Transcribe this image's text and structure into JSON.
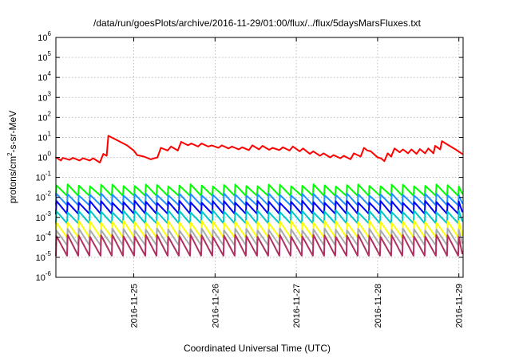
{
  "chart_data": {
    "type": "line",
    "title": "/data/run/goesPlots/archive/2016-11-29/01:00/flux/../flux/5daysMarsFluxes.txt",
    "xlabel": "Coordinated Universal Time (UTC)",
    "ylabel": {
      "pre": "protons/cm",
      "sup": "2",
      "post": "-s-sr-MeV"
    },
    "y_scale": "log",
    "ylim_exponents": [
      -6,
      6
    ],
    "y_tick_exponents": [
      -6,
      -5,
      -4,
      -3,
      -2,
      -1,
      0,
      1,
      2,
      3,
      4,
      5,
      6
    ],
    "y_tick_base": "10",
    "xlim": [
      "2016-11-24 01:00",
      "2016-11-29 01:15"
    ],
    "x_ticks": [
      {
        "label": "2016-11-25",
        "value": "2016-11-25 00:00"
      },
      {
        "label": "2016-11-26",
        "value": "2016-11-26 00:00"
      },
      {
        "label": "2016-11-27",
        "value": "2016-11-27 00:00"
      },
      {
        "label": "2016-11-28",
        "value": "2016-11-28 00:00"
      },
      {
        "label": "2016-11-29",
        "value": "2016-11-29 00:00"
      }
    ],
    "grid": true,
    "legend": "none",
    "series": [
      {
        "color": "#ff0000",
        "points": [
          [
            "2016-11-24 01:00",
            1.0
          ],
          [
            "2016-11-24 02:30",
            0.7
          ],
          [
            "2016-11-24 03:00",
            0.95
          ],
          [
            "2016-11-24 05:00",
            0.75
          ],
          [
            "2016-11-24 06:00",
            0.95
          ],
          [
            "2016-11-24 08:00",
            0.7
          ],
          [
            "2016-11-24 09:00",
            0.9
          ],
          [
            "2016-11-24 11:00",
            0.7
          ],
          [
            "2016-11-24 12:00",
            0.9
          ],
          [
            "2016-11-24 14:00",
            0.55
          ],
          [
            "2016-11-24 15:00",
            1.5
          ],
          [
            "2016-11-24 16:00",
            1.2
          ],
          [
            "2016-11-24 16:30",
            12
          ],
          [
            "2016-11-24 18:00",
            9
          ],
          [
            "2016-11-24 20:00",
            6
          ],
          [
            "2016-11-24 22:00",
            4
          ],
          [
            "2016-11-25 00:00",
            2.2
          ],
          [
            "2016-11-25 01:00",
            1.3
          ],
          [
            "2016-11-25 03:00",
            1.1
          ],
          [
            "2016-11-25 05:00",
            0.8
          ],
          [
            "2016-11-25 07:00",
            1.0
          ],
          [
            "2016-11-25 08:00",
            3.0
          ],
          [
            "2016-11-25 10:00",
            2.2
          ],
          [
            "2016-11-25 11:00",
            3.5
          ],
          [
            "2016-11-25 13:00",
            2.2
          ],
          [
            "2016-11-25 14:00",
            6.0
          ],
          [
            "2016-11-25 16:00",
            4.0
          ],
          [
            "2016-11-25 17:00",
            5.0
          ],
          [
            "2016-11-25 19:00",
            3.5
          ],
          [
            "2016-11-25 20:00",
            5.0
          ],
          [
            "2016-11-25 22:00",
            3.5
          ],
          [
            "2016-11-25 23:00",
            4.0
          ],
          [
            "2016-11-26 01:00",
            3.0
          ],
          [
            "2016-11-26 02:00",
            4.0
          ],
          [
            "2016-11-26 04:00",
            2.8
          ],
          [
            "2016-11-26 05:00",
            3.5
          ],
          [
            "2016-11-26 07:00",
            2.5
          ],
          [
            "2016-11-26 08:00",
            3.2
          ],
          [
            "2016-11-26 10:00",
            2.3
          ],
          [
            "2016-11-26 11:00",
            4.0
          ],
          [
            "2016-11-26 13:00",
            2.5
          ],
          [
            "2016-11-26 14:00",
            3.8
          ],
          [
            "2016-11-26 16:00",
            2.4
          ],
          [
            "2016-11-26 17:00",
            3.0
          ],
          [
            "2016-11-26 19:00",
            2.3
          ],
          [
            "2016-11-26 20:00",
            3.2
          ],
          [
            "2016-11-26 22:00",
            2.2
          ],
          [
            "2016-11-26 23:00",
            3.5
          ],
          [
            "2016-11-27 01:00",
            2.0
          ],
          [
            "2016-11-27 02:00",
            2.8
          ],
          [
            "2016-11-27 04:00",
            1.5
          ],
          [
            "2016-11-27 05:00",
            2.0
          ],
          [
            "2016-11-27 07:00",
            1.2
          ],
          [
            "2016-11-27 08:00",
            1.6
          ],
          [
            "2016-11-27 10:00",
            1.0
          ],
          [
            "2016-11-27 11:00",
            1.3
          ],
          [
            "2016-11-27 13:00",
            0.9
          ],
          [
            "2016-11-27 14:00",
            1.2
          ],
          [
            "2016-11-27 16:00",
            0.8
          ],
          [
            "2016-11-27 17:00",
            1.6
          ],
          [
            "2016-11-27 19:00",
            1.1
          ],
          [
            "2016-11-27 20:00",
            3.0
          ],
          [
            "2016-11-27 21:00",
            2.2
          ],
          [
            "2016-11-27 22:00",
            2.0
          ],
          [
            "2016-11-28 00:00",
            1.0
          ],
          [
            "2016-11-28 01:00",
            0.9
          ],
          [
            "2016-11-28 02:00",
            0.65
          ],
          [
            "2016-11-28 03:00",
            1.6
          ],
          [
            "2016-11-28 04:00",
            1.1
          ],
          [
            "2016-11-28 05:00",
            2.8
          ],
          [
            "2016-11-28 06:30",
            1.8
          ],
          [
            "2016-11-28 07:30",
            2.5
          ],
          [
            "2016-11-28 09:00",
            1.6
          ],
          [
            "2016-11-28 10:00",
            2.5
          ],
          [
            "2016-11-28 11:30",
            1.5
          ],
          [
            "2016-11-28 12:30",
            2.6
          ],
          [
            "2016-11-28 14:00",
            1.6
          ],
          [
            "2016-11-28 15:00",
            2.8
          ],
          [
            "2016-11-28 16:30",
            1.6
          ],
          [
            "2016-11-28 17:00",
            3.8
          ],
          [
            "2016-11-28 18:30",
            2.5
          ],
          [
            "2016-11-28 19:00",
            6.5
          ],
          [
            "2016-11-28 21:00",
            4.0
          ],
          [
            "2016-11-28 23:00",
            2.5
          ],
          [
            "2016-11-29 01:00",
            1.5
          ]
        ]
      }
    ],
    "sawtooth_series": [
      {
        "color": "#00ff00",
        "peak": 0.04,
        "trough": 0.012
      },
      {
        "color": "#1e90ff",
        "peak": 0.014,
        "trough": 0.004
      },
      {
        "color": "#0000ff",
        "peak": 0.006,
        "trough": 0.0015
      },
      {
        "color": "#00c8c8",
        "peak": 0.002,
        "trough": 0.0005
      },
      {
        "color": "#ffff00",
        "peak": 0.0006,
        "trough": 0.0001
      },
      {
        "color": "#aaaaaa",
        "peak": 0.00025,
        "trough": 4e-05
      },
      {
        "color": "#b03060",
        "peak": 0.00012,
        "trough": 1.2e-05
      }
    ],
    "sawtooth_period_hours": 3.3,
    "sawtooth_start": "2016-11-24 01:00",
    "sawtooth_end": "2016-11-29 01:00"
  }
}
